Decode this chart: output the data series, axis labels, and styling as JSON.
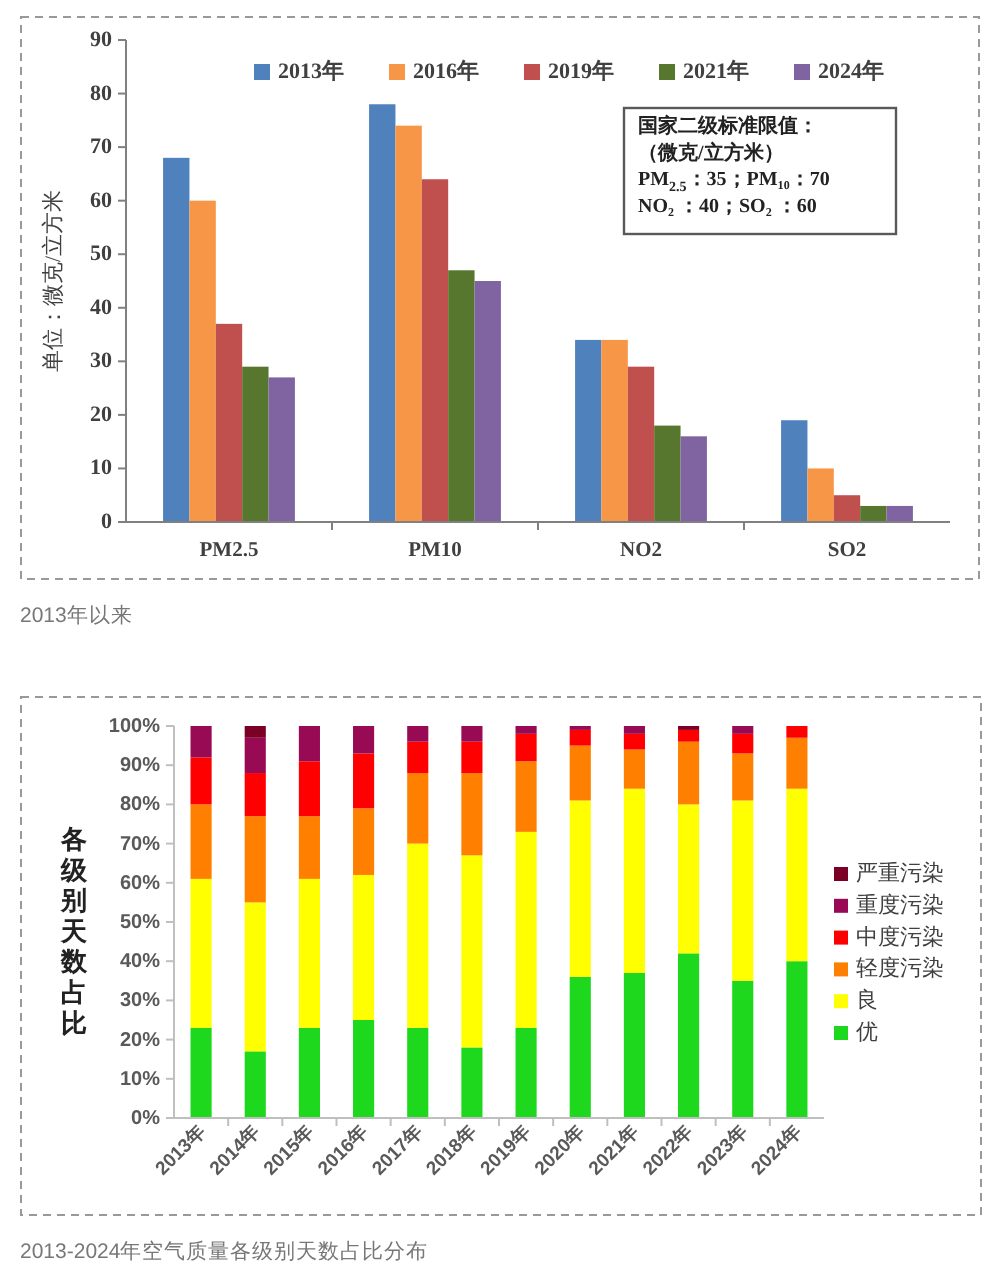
{
  "chart_data": [
    {
      "type": "bar",
      "categories": [
        "PM2.5",
        "PM10",
        "NO2",
        "SO2"
      ],
      "series": [
        {
          "name": "2013年",
          "color": "#4f81bd",
          "values": [
            68,
            78,
            34,
            19
          ]
        },
        {
          "name": "2016年",
          "color": "#f79646",
          "values": [
            60,
            74,
            34,
            10
          ]
        },
        {
          "name": "2019年",
          "color": "#c0504d",
          "values": [
            37,
            64,
            29,
            5
          ]
        },
        {
          "name": "2021年",
          "color": "#56772d",
          "values": [
            29,
            47,
            18,
            3
          ]
        },
        {
          "name": "2024年",
          "color": "#8064a2",
          "values": [
            27,
            45,
            16,
            3
          ]
        }
      ],
      "ylabel": "单位：微克/立方米",
      "ylim": [
        0,
        90
      ],
      "yticks": [
        0,
        10,
        20,
        30,
        40,
        50,
        60,
        70,
        80,
        90
      ],
      "legend": "top",
      "annotations": [
        "国家二级标准限值：",
        "（微克/立方米）",
        "PM$_{2.5}$：35；PM₁₀：70",
        "NO₂ ：40；SO₂ ：60",
        "2013年以来"
      ]
    },
    {
      "type": "bar",
      "stacked": true,
      "categories": [
        "2013年",
        "2014年",
        "2015年",
        "2016年",
        "2017年",
        "2018年",
        "2019年",
        "2020年",
        "2021年",
        "2022年",
        "2023年",
        "2024年"
      ],
      "series": [
        {
          "name": "优",
          "color": "#1ed81e",
          "values": [
            23,
            17,
            23,
            25,
            23,
            18,
            23,
            36,
            37,
            42,
            35,
            40
          ]
        },
        {
          "name": "良",
          "color": "#ffff00",
          "values": [
            38,
            38,
            38,
            37,
            47,
            49,
            50,
            45,
            47,
            38,
            46,
            44
          ]
        },
        {
          "name": "轻度污染",
          "color": "#ff8000",
          "values": [
            19,
            22,
            16,
            17,
            18,
            21,
            18,
            14,
            10,
            16,
            12,
            13
          ]
        },
        {
          "name": "中度污染",
          "color": "#ff0000",
          "values": [
            12,
            11,
            14,
            14,
            8,
            8,
            7,
            4,
            4,
            3,
            5,
            3
          ]
        },
        {
          "name": "重度污染",
          "color": "#990a55",
          "values": [
            8,
            9,
            9,
            7,
            4,
            4,
            2,
            1,
            2,
            0,
            2,
            0
          ]
        },
        {
          "name": "严重污染",
          "color": "#7a0025",
          "values": [
            0,
            3,
            0,
            0,
            0,
            0,
            0,
            0,
            0,
            1,
            0,
            0
          ]
        }
      ],
      "ylabel": "各级别天数占比",
      "ylim": [
        0,
        100
      ],
      "yticks": [
        {
          "value": 0,
          "label": "0%"
        },
        {
          "value": 10,
          "label": "10%"
        },
        {
          "value": 20,
          "label": "20%"
        },
        {
          "value": 30,
          "label": "30%"
        },
        {
          "value": 40,
          "label": "40%"
        },
        {
          "value": 50,
          "label": "50%"
        },
        {
          "value": 60,
          "label": "60%"
        },
        {
          "value": 70,
          "label": "70%"
        },
        {
          "value": 80,
          "label": "80%"
        },
        {
          "value": 90,
          "label": "90%"
        },
        {
          "value": 100,
          "label": "100%"
        }
      ],
      "legend": "right",
      "annotations": [
        "2013-2024年空气质量各级别天数占比分布"
      ]
    }
  ]
}
